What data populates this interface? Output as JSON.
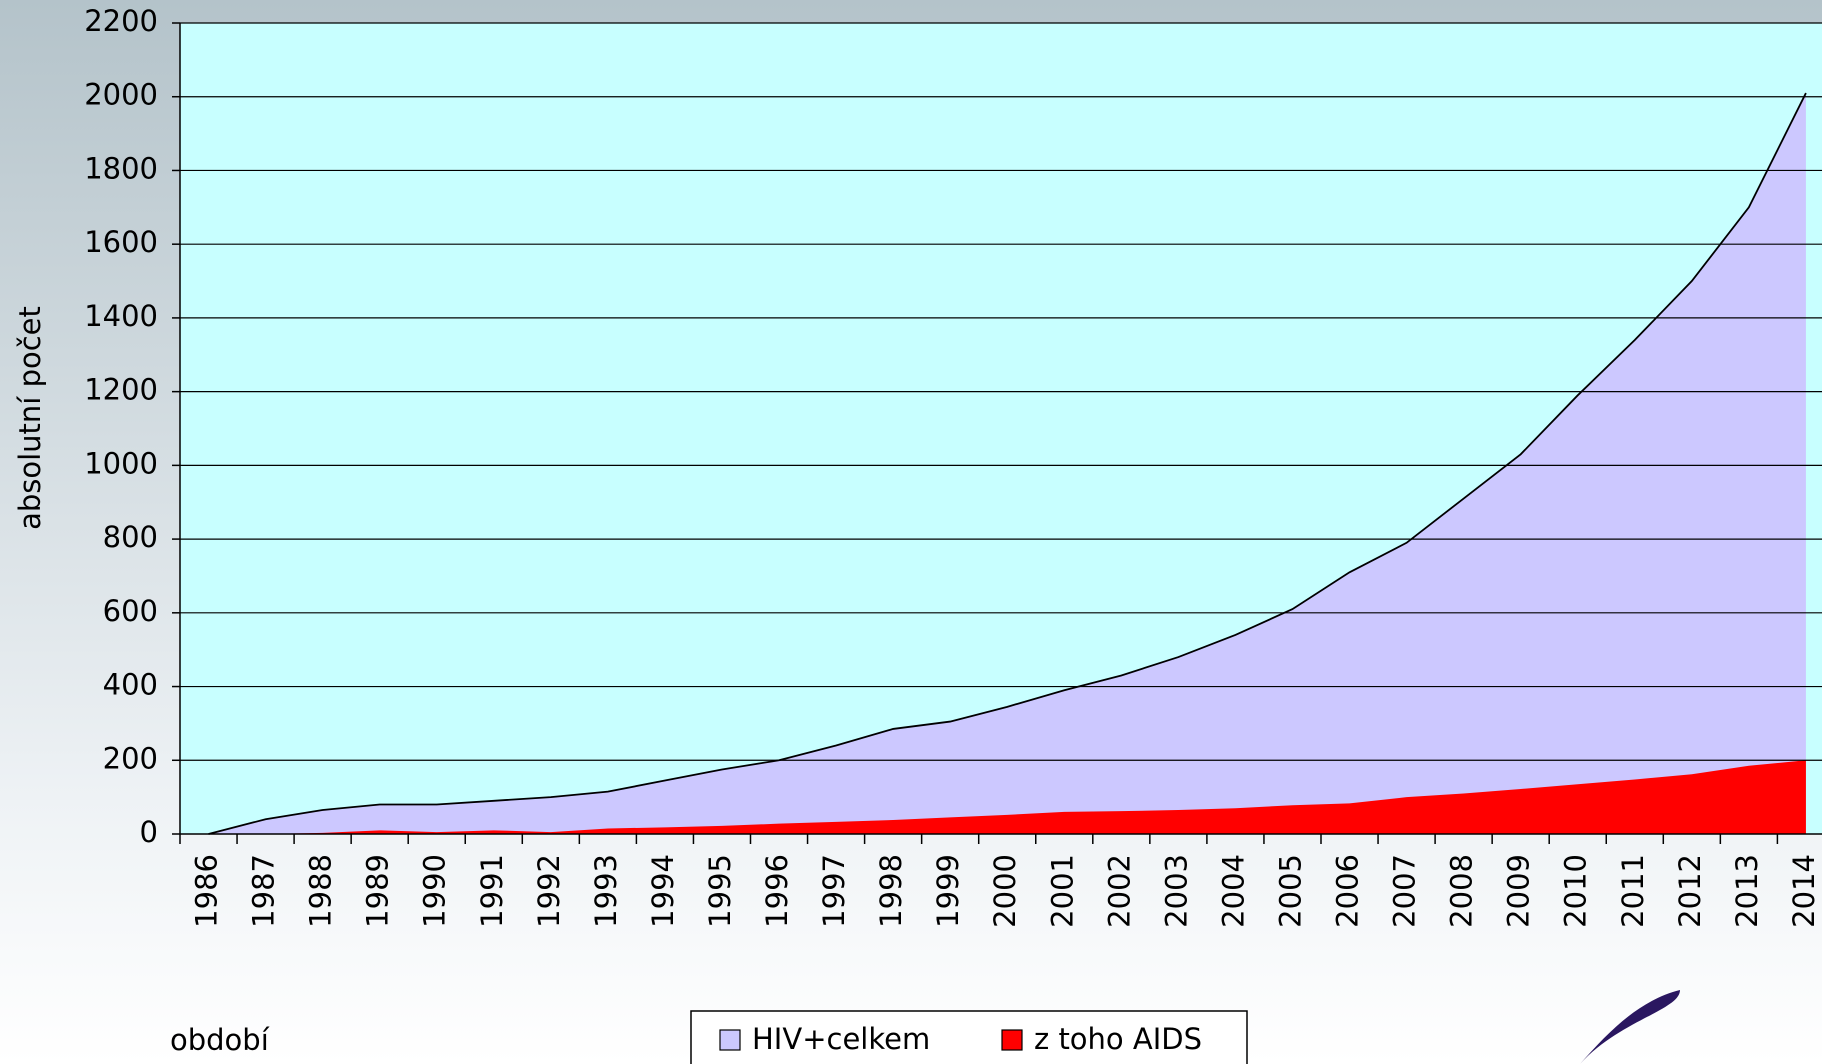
{
  "chart_data": {
    "type": "area",
    "y_label": "absolutní počet",
    "x_label": "období",
    "categories": [
      "1986",
      "1987",
      "1988",
      "1989",
      "1990",
      "1991",
      "1992",
      "1993",
      "1994",
      "1995",
      "1996",
      "1997",
      "1998",
      "1999",
      "2000",
      "2001",
      "2002",
      "2003",
      "2004",
      "2005",
      "2006",
      "2007",
      "2008",
      "2009",
      "2010",
      "2011",
      "2012",
      "2013",
      "2014"
    ],
    "series": [
      {
        "name": "HIV+celkem",
        "color": "#ccc8ff",
        "values": [
          0,
          40,
          65,
          80,
          80,
          90,
          100,
          115,
          145,
          175,
          200,
          240,
          285,
          305,
          345,
          390,
          430,
          480,
          540,
          610,
          710,
          790,
          910,
          1030,
          1190,
          1340,
          1500,
          1700,
          2010
        ]
      },
      {
        "name": "z toho AIDS",
        "color": "#ff0000",
        "values": [
          0,
          0,
          3,
          10,
          5,
          10,
          5,
          15,
          18,
          22,
          28,
          33,
          38,
          45,
          52,
          60,
          62,
          65,
          70,
          78,
          83,
          100,
          110,
          122,
          135,
          148,
          162,
          185,
          200
        ]
      }
    ],
    "ylim": [
      0,
      2200
    ],
    "yticks": [
      0,
      200,
      400,
      600,
      800,
      1000,
      1200,
      1400,
      1600,
      1800,
      2000,
      2200
    ],
    "grid": true,
    "legend": "bottom"
  }
}
